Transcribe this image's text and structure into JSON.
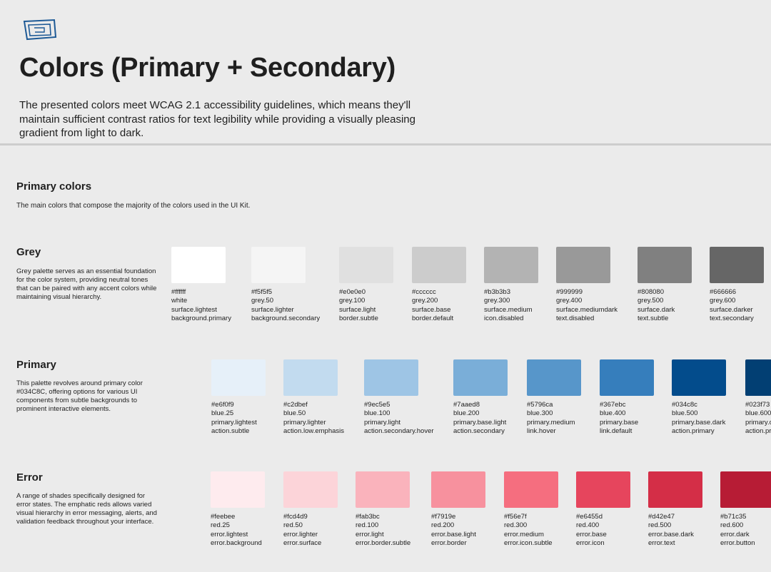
{
  "header": {
    "logo_icon": "frame-logo-icon",
    "title": "Colors (Primary + Secondary)",
    "description": "The presented colors meet WCAG 2.1 accessibility guidelines, which means they'll maintain sufficient contrast ratios for text legibility while providing a visually pleasing gradient from light to dark."
  },
  "section": {
    "title": "Primary colors",
    "description": "The main colors that compose the majority of the colors used in the UI Kit."
  },
  "groups": [
    {
      "title": "Grey",
      "description": "Grey palette serves as an essential foundation for the color system, providing neutral tones that can be paired with any accent colors while maintaining visual hierarchy.",
      "swatches": [
        {
          "hex": "#ffffff",
          "name": "white",
          "token": "surface.lightest",
          "usage": "background.primary",
          "color": "#ffffff"
        },
        {
          "hex": "#f5f5f5",
          "name": "grey.50",
          "token": "surface.lighter",
          "usage": "background.secondary",
          "color": "#f5f5f5"
        },
        {
          "hex": "#e0e0e0",
          "name": "grey.100",
          "token": "surface.light",
          "usage": "border.subtle",
          "color": "#e0e0e0"
        },
        {
          "hex": "#cccccc",
          "name": "grey.200",
          "token": "surface.base",
          "usage": "border.default",
          "color": "#cccccc"
        },
        {
          "hex": "#b3b3b3",
          "name": "grey.300",
          "token": "surface.medium",
          "usage": "icon.disabled",
          "color": "#b3b3b3"
        },
        {
          "hex": "#999999",
          "name": "grey.400",
          "token": "surface.mediumdark",
          "usage": "text.disabled",
          "color": "#999999"
        },
        {
          "hex": "#808080",
          "name": "grey.500",
          "token": "surface.dark",
          "usage": "text.subtle",
          "color": "#808080"
        },
        {
          "hex": "#666666",
          "name": "grey.600",
          "token": "surface.darker",
          "usage": "text.secondary",
          "color": "#666666"
        }
      ]
    },
    {
      "title": "Primary",
      "description": "This palette revolves around primary color #034C8C, offering options for various UI components from subtle backgrounds to prominent interactive elements.",
      "swatches": [
        {
          "hex": "#e6f0f9",
          "name": "blue.25",
          "token": "primary.lightest",
          "usage": "action.subtle",
          "color": "#e6f0f9"
        },
        {
          "hex": "#c2dbef",
          "name": "blue.50",
          "token": "primary.lighter",
          "usage": "action.low.emphasis",
          "color": "#c2dbef"
        },
        {
          "hex": "#9ec5e5",
          "name": "blue.100",
          "token": "primary.light",
          "usage": "action.secondary.hover",
          "color": "#9ec5e5"
        },
        {
          "hex": "#7aaed8",
          "name": "blue.200",
          "token": "primary.base.light",
          "usage": "action.secondary",
          "color": "#7aaed8"
        },
        {
          "hex": "#5796ca",
          "name": "blue.300",
          "token": "primary.medium",
          "usage": "link.hover",
          "color": "#5796ca"
        },
        {
          "hex": "#367ebc",
          "name": "blue.400",
          "token": "primary.base",
          "usage": "link.default",
          "color": "#367ebc"
        },
        {
          "hex": "#034c8c",
          "name": "blue.500",
          "token": "primary.base.dark",
          "usage": "action.primary",
          "color": "#034c8c"
        },
        {
          "hex": "#023f73",
          "name": "blue.600",
          "token": "primary.dark",
          "usage": "action.pressed",
          "color": "#023f73"
        }
      ]
    },
    {
      "title": "Error",
      "description": "A range of shades specifically designed for error states. The emphatic reds allows varied visual hierarchy in error messaging, alerts, and validation feedback throughout your interface.",
      "swatches": [
        {
          "hex": "#feebee",
          "name": "red.25",
          "token": "error.lightest",
          "usage": "error.background",
          "color": "#feebee"
        },
        {
          "hex": "#fcd4d9",
          "name": "red.50",
          "token": "error.lighter",
          "usage": "error.surface",
          "color": "#fcd4d9"
        },
        {
          "hex": "#fab3bc",
          "name": "red.100",
          "token": "error.light",
          "usage": "error.border.subtle",
          "color": "#fab3bc"
        },
        {
          "hex": "#f7919e",
          "name": "red.200",
          "token": "error.base.light",
          "usage": "error.border",
          "color": "#f7919e"
        },
        {
          "hex": "#f56e7f",
          "name": "red.300",
          "token": "error.medium",
          "usage": "error.icon.subtle",
          "color": "#f56e7f"
        },
        {
          "hex": "#e6455d",
          "name": "red.400",
          "token": "error.base",
          "usage": "error.icon",
          "color": "#e6455d"
        },
        {
          "hex": "#d42e47",
          "name": "red.500",
          "token": "error.base.dark",
          "usage": "error.text",
          "color": "#d42e47"
        },
        {
          "hex": "#b71c35",
          "name": "red.600",
          "token": "error.dark",
          "usage": "error.button",
          "color": "#b71c35"
        }
      ]
    }
  ]
}
